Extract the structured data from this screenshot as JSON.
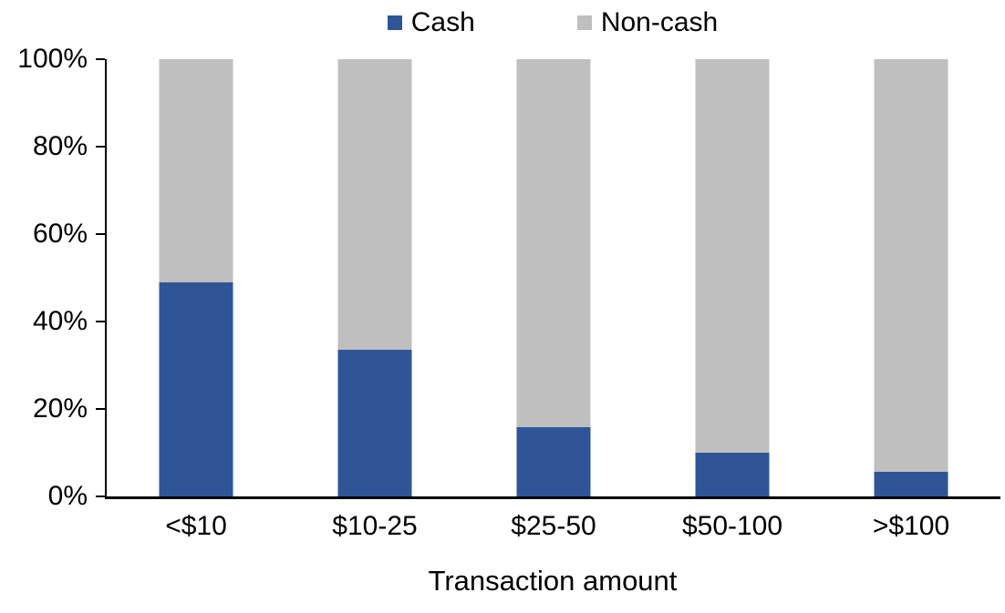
{
  "chart_data": {
    "type": "bar",
    "stacked": true,
    "percent_stacked": true,
    "categories": [
      "<$10",
      "$10-25",
      "$25-50",
      "$50-100",
      ">$100"
    ],
    "series": [
      {
        "name": "Cash",
        "color": "#2F5597",
        "values": [
          49,
          33.5,
          15.8,
          10,
          5.7
        ]
      },
      {
        "name": "Non-cash",
        "color": "#BFBFBF",
        "values": [
          51,
          66.5,
          84.2,
          90,
          94.3
        ]
      }
    ],
    "title": "",
    "xlabel": "Transaction amount",
    "ylabel": "",
    "ylim": [
      0,
      100
    ],
    "yticks": [
      "0%",
      "20%",
      "40%",
      "60%",
      "80%",
      "100%"
    ],
    "legend_position": "top",
    "grid": false,
    "axis_color": "#000000",
    "text_color": "#000000"
  }
}
